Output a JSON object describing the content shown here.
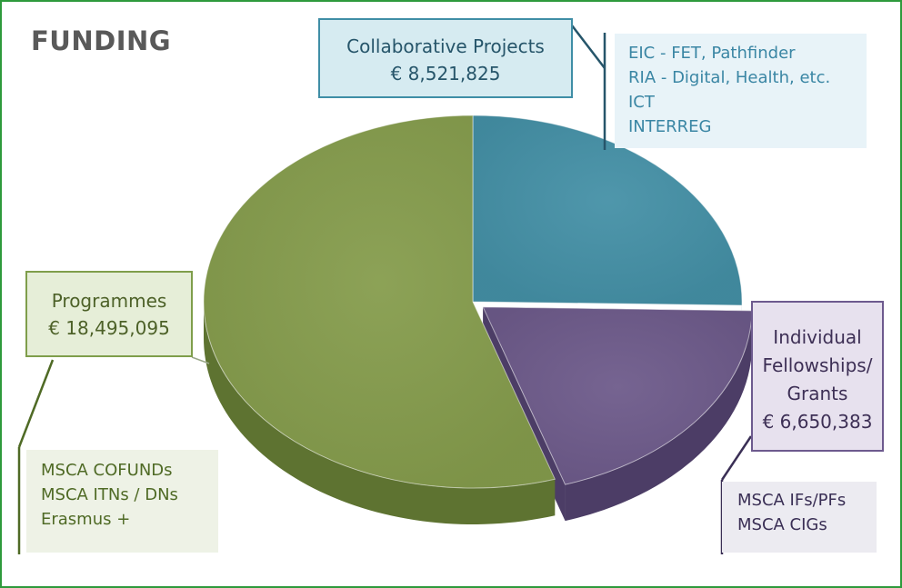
{
  "chart_data": {
    "type": "pie",
    "title": "FUNDING",
    "currency": "€",
    "series": [
      {
        "name": "Collaborative Projects",
        "value_label": "€ 8,521,825",
        "value": 8521825,
        "color": "#4490a6",
        "side_color": "#2f6f82",
        "details": [
          "EIC - FET, Pathfinder",
          "RIA - Digital, Health, etc.",
          "ICT",
          "INTERREG"
        ]
      },
      {
        "name": "Individual Fellowships/ Grants",
        "name_lines": [
          "Individual",
          "Fellowships/",
          "Grants"
        ],
        "value_label": "€ 6,650,383",
        "value": 6650383,
        "color": "#6d5a8a",
        "side_color": "#4c3d66",
        "details": [
          "MSCA IFs/PFs",
          "MSCA CIGs"
        ]
      },
      {
        "name": "Programmes",
        "value_label": "€ 18,495,095",
        "value": 18495095,
        "color": "#859c4c",
        "side_color": "#5e7331",
        "details": [
          "MSCA COFUNDs",
          "MSCA ITNs / DNs",
          "Erasmus +"
        ]
      }
    ]
  }
}
